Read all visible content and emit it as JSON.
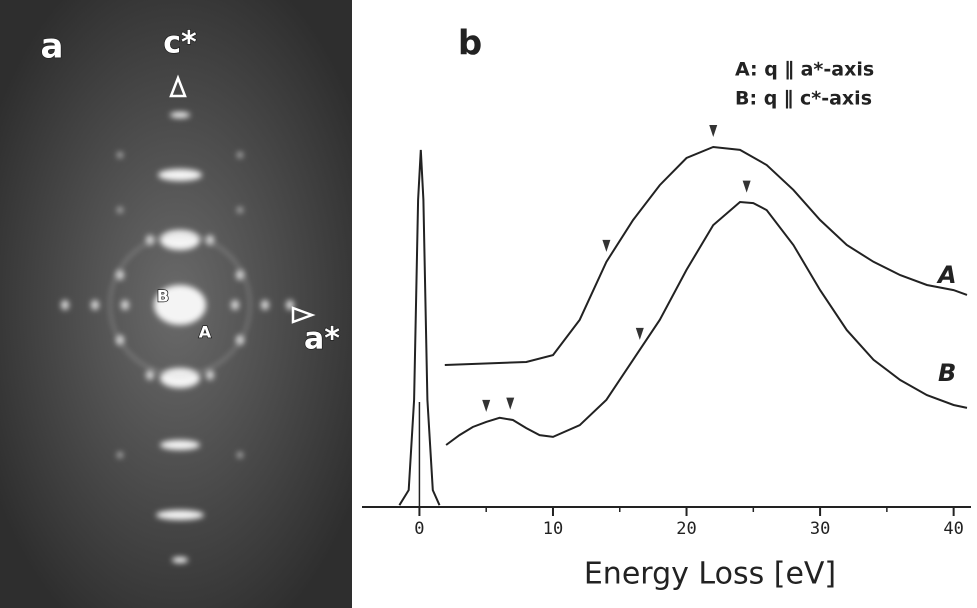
{
  "panel_a": {
    "label": "a",
    "c_axis": "c*",
    "a_axis": "a*",
    "spot_b": "B",
    "spot_a": "A"
  },
  "chart_data": {
    "type": "line",
    "panel_label": "b",
    "x_label": "Energy Loss [eV]",
    "legend": [
      "A: q ∥ a*-axis",
      "B: q ∥ c*-axis"
    ],
    "xlim": [
      -4.3,
      41.3
    ],
    "ylim": [
      0,
      100
    ],
    "xticks": [
      0,
      10,
      20,
      30,
      40
    ],
    "xminorticks": [
      5,
      15,
      25,
      35
    ],
    "series": [
      {
        "color": "#222",
        "x": [
          -1.5,
          -0.8,
          -0.4,
          -0.1,
          0.1,
          0.3,
          0.6,
          1,
          1.5
        ],
        "values": [
          0.5,
          4.6,
          29.2,
          83.7,
          97.3,
          83.7,
          29.2,
          4.6,
          0.5
        ]
      },
      {
        "name": "A",
        "color": "#222",
        "x": [
          1.9,
          8,
          10,
          12,
          14,
          16,
          18,
          20,
          22,
          24,
          26,
          28,
          30,
          32,
          34,
          36,
          38,
          40,
          41
        ],
        "values": [
          38.7,
          39.5,
          41.4,
          51.0,
          66.8,
          78.2,
          87.7,
          95.1,
          98.1,
          97.3,
          93.2,
          86.4,
          78.2,
          71.4,
          66.8,
          63.2,
          60.5,
          59.1,
          57.8
        ],
        "markers": [
          14,
          22
        ]
      },
      {
        "name": "B",
        "color": "#222",
        "x": [
          2,
          3,
          4,
          5,
          6,
          7,
          8,
          9,
          10,
          12,
          14,
          16,
          18,
          20,
          22,
          24,
          25,
          26,
          28,
          30,
          32,
          34,
          36,
          38,
          40,
          41
        ],
        "values": [
          16.9,
          19.6,
          21.8,
          23.2,
          24.3,
          23.7,
          21.5,
          19.6,
          19.1,
          22.3,
          29.2,
          40.1,
          51.0,
          64.6,
          76.8,
          83.1,
          82.8,
          80.9,
          71.4,
          59.1,
          48.2,
          40.1,
          34.6,
          30.5,
          27.8,
          27.0
        ],
        "markers": [
          5,
          6.8,
          16.5,
          24.5
        ]
      }
    ]
  }
}
